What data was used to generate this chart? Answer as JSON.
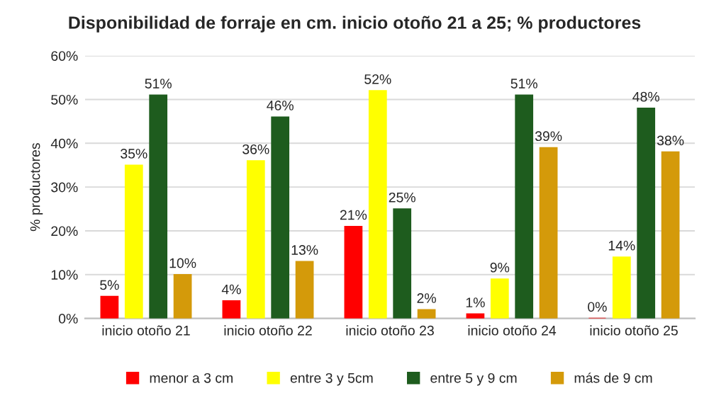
{
  "chart_data": {
    "type": "bar",
    "title": "Disponibilidad de forraje en cm. inicio otoño 21 a 25; % productores",
    "ylabel": "% productores",
    "categories": [
      "inicio otoño 21",
      "inicio otoño 22",
      "inicio otoño 23",
      "inicio otoño 24",
      "inicio otoño 25"
    ],
    "series": [
      {
        "name": "menor a 3 cm",
        "color": "#ff0000",
        "values": [
          5,
          4,
          21,
          1,
          0
        ],
        "value_labels": [
          "5%",
          "4%",
          "21%",
          "1%",
          "0%"
        ]
      },
      {
        "name": "entre 3 y 5cm",
        "color": "#ffff00",
        "values": [
          35,
          36,
          52,
          9,
          14
        ],
        "value_labels": [
          "35%",
          "36%",
          "52%",
          "9%",
          "14%"
        ]
      },
      {
        "name": "entre 5 y 9 cm",
        "color": "#1e5c1e",
        "values": [
          51,
          46,
          25,
          51,
          48
        ],
        "value_labels": [
          "51%",
          "46%",
          "25%",
          "51%",
          "48%"
        ]
      },
      {
        "name": "más de 9 cm",
        "color": "#d49a0a",
        "values": [
          10,
          13,
          2,
          39,
          38
        ],
        "value_labels": [
          "10%",
          "13%",
          "2%",
          "39%",
          "38%"
        ]
      }
    ],
    "ylim": [
      0,
      60
    ],
    "yticks": [
      {
        "value": 0,
        "label": "0%"
      },
      {
        "value": 10,
        "label": "10%"
      },
      {
        "value": 20,
        "label": "20%"
      },
      {
        "value": 30,
        "label": "30%"
      },
      {
        "value": 40,
        "label": "40%"
      },
      {
        "value": 50,
        "label": "50%"
      },
      {
        "value": 60,
        "label": "60%"
      }
    ],
    "grid": "y",
    "legend": "bottom"
  }
}
